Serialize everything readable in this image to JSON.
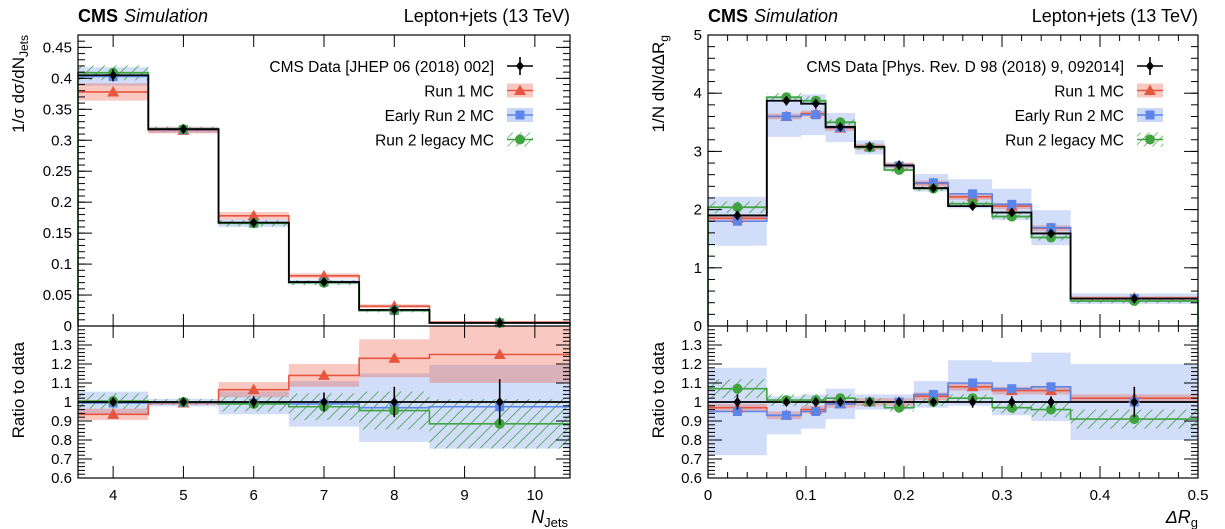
{
  "chart_data": [
    {
      "type": "histogram",
      "panel": "left",
      "experiment": "CMS",
      "label_italic": "Simulation",
      "header_right": "Lepton+jets (13 TeV)",
      "ylabel_main": "1/σ dσ/dN",
      "ylabel_main_sub": "Jets",
      "ylabel_ratio": "Ratio to data",
      "xlabel": "N",
      "xlabel_sub": "Jets",
      "xlim": [
        3.5,
        10.5
      ],
      "ylim_main": [
        0,
        0.47
      ],
      "ylim_ratio": [
        0.6,
        1.4
      ],
      "x_ticks": [
        "4",
        "5",
        "6",
        "7",
        "8",
        "9",
        "10"
      ],
      "y_ticks_main": [
        "0",
        "0.05",
        "0.1",
        "0.15",
        "0.2",
        "0.25",
        "0.3",
        "0.35",
        "0.4",
        "0.45"
      ],
      "y_ticks_ratio": [
        "0.6",
        "0.7",
        "0.8",
        "0.9",
        "1",
        "1.1",
        "1.2",
        "1.3"
      ],
      "bin_edges": [
        3.5,
        4.5,
        5.5,
        6.5,
        7.5,
        8.5,
        10.5
      ],
      "bin_centers": [
        4,
        5,
        6,
        7,
        8,
        9.5
      ],
      "legend": [
        "CMS Data [JHEP 06 (2018) 002]",
        "Run 1 MC",
        "Early Run 2 MC",
        "Run 2 legacy MC"
      ],
      "series": [
        {
          "name": "CMS Data [JHEP 06 (2018) 002]",
          "values": [
            0.405,
            0.318,
            0.167,
            0.071,
            0.026,
            0.005
          ],
          "errors": [
            0.01,
            0.006,
            0.005,
            0.003,
            0.002,
            0.001
          ],
          "color": "#000000"
        },
        {
          "name": "Run 1 MC",
          "values": [
            0.378,
            0.316,
            0.178,
            0.081,
            0.032,
            0.006
          ],
          "band": [
            0.014,
            0.005,
            0.006,
            0.004,
            0.003,
            0.002
          ],
          "ratio": [
            0.935,
            0.995,
            1.065,
            1.14,
            1.23,
            1.25
          ],
          "ratio_band": [
            0.03,
            0.01,
            0.04,
            0.06,
            0.1,
            0.15
          ],
          "color": "#e8553f"
        },
        {
          "name": "Early Run 2 MC",
          "values": [
            0.403,
            0.317,
            0.166,
            0.071,
            0.025,
            0.005
          ],
          "band": [
            0.015,
            0.005,
            0.006,
            0.004,
            0.002,
            0.001
          ],
          "ratio": [
            0.995,
            0.997,
            0.995,
            0.99,
            0.97,
            0.975
          ],
          "ratio_band": [
            0.06,
            0.02,
            0.06,
            0.12,
            0.18,
            0.22
          ],
          "color": "#5b85ea"
        },
        {
          "name": "Run 2 legacy MC",
          "values": [
            0.409,
            0.318,
            0.166,
            0.07,
            0.025,
            0.005
          ],
          "band": [
            0.012,
            0.004,
            0.005,
            0.004,
            0.003,
            0.001
          ],
          "ratio": [
            1.005,
            1.0,
            0.99,
            0.975,
            0.955,
            0.885
          ],
          "ratio_band": [
            0.04,
            0.015,
            0.04,
            0.07,
            0.1,
            0.13
          ],
          "color": "#3fa33f"
        }
      ],
      "data_ratio_errors": [
        0.02,
        0.02,
        0.03,
        0.05,
        0.08,
        0.12
      ]
    },
    {
      "type": "histogram",
      "panel": "right",
      "experiment": "CMS",
      "label_italic": "Simulation",
      "header_right": "Lepton+jets (13 TeV)",
      "ylabel_main": "1/N  dN/dΔR",
      "ylabel_main_sub": "g",
      "ylabel_ratio": "Ratio to data",
      "xlabel": "ΔR",
      "xlabel_sub": "g",
      "xlim": [
        0,
        0.5
      ],
      "ylim_main": [
        0,
        5
      ],
      "ylim_ratio": [
        0.6,
        1.4
      ],
      "x_ticks": [
        "0",
        "0.1",
        "0.2",
        "0.3",
        "0.4",
        "0.5"
      ],
      "y_ticks_main": [
        "0",
        "1",
        "2",
        "3",
        "4",
        "5"
      ],
      "y_ticks_ratio": [
        "0.6",
        "0.7",
        "0.8",
        "0.9",
        "1",
        "1.1",
        "1.2",
        "1.3"
      ],
      "bin_edges": [
        0,
        0.06,
        0.095,
        0.12,
        0.15,
        0.18,
        0.21,
        0.245,
        0.29,
        0.33,
        0.37,
        0.5
      ],
      "bin_centers": [
        0.03,
        0.08,
        0.11,
        0.135,
        0.165,
        0.195,
        0.23,
        0.27,
        0.31,
        0.35,
        0.435
      ],
      "legend": [
        "CMS Data [Phys. Rev. D 98 (2018) 9, 092014]",
        "Run 1 MC",
        "Early Run 2 MC",
        "Run 2 legacy MC"
      ],
      "series": [
        {
          "name": "CMS Data [Phys. Rev. D 98 (2018) 9, 092014]",
          "values": [
            1.9,
            3.87,
            3.82,
            3.42,
            3.08,
            2.76,
            2.37,
            2.06,
            1.95,
            1.59,
            0.47
          ],
          "errors": [
            0.08,
            0.08,
            0.08,
            0.07,
            0.06,
            0.06,
            0.06,
            0.05,
            0.05,
            0.05,
            0.04
          ],
          "color": "#000000"
        },
        {
          "name": "Run 1 MC",
          "values": [
            1.85,
            3.6,
            3.65,
            3.4,
            3.08,
            2.76,
            2.45,
            2.22,
            2.06,
            1.68,
            0.48
          ],
          "band": [
            0.05,
            0.05,
            0.05,
            0.05,
            0.05,
            0.05,
            0.05,
            0.05,
            0.05,
            0.05,
            0.03
          ],
          "ratio": [
            0.97,
            0.93,
            0.96,
            0.99,
            1.0,
            1.0,
            1.03,
            1.08,
            1.06,
            1.06,
            1.02
          ],
          "ratio_band": [
            0.02,
            0.02,
            0.02,
            0.02,
            0.02,
            0.02,
            0.02,
            0.02,
            0.02,
            0.02,
            0.02
          ],
          "color": "#e8553f"
        },
        {
          "name": "Early Run 2 MC",
          "values": [
            1.8,
            3.6,
            3.63,
            3.41,
            3.07,
            2.75,
            2.46,
            2.27,
            2.09,
            1.69,
            0.47
          ],
          "band": [
            0.42,
            0.35,
            0.35,
            0.25,
            0.12,
            0.05,
            0.15,
            0.25,
            0.27,
            0.3,
            0.09
          ],
          "ratio": [
            0.95,
            0.93,
            0.95,
            0.99,
            1.0,
            1.0,
            1.04,
            1.1,
            1.07,
            1.08,
            1.0
          ],
          "ratio_band": [
            0.23,
            0.1,
            0.09,
            0.08,
            0.04,
            0.04,
            0.07,
            0.12,
            0.14,
            0.18,
            0.2
          ],
          "color": "#5b85ea"
        },
        {
          "name": "Run 2 legacy MC",
          "values": [
            2.04,
            3.93,
            3.87,
            3.5,
            3.07,
            2.68,
            2.36,
            2.1,
            1.88,
            1.52,
            0.43
          ],
          "band": [
            0.1,
            0.07,
            0.07,
            0.05,
            0.04,
            0.04,
            0.04,
            0.04,
            0.05,
            0.05,
            0.04
          ],
          "ratio": [
            1.07,
            1.01,
            1.01,
            1.02,
            1.0,
            0.97,
            1.0,
            1.02,
            0.97,
            0.96,
            0.91
          ],
          "ratio_band": [
            0.05,
            0.03,
            0.03,
            0.02,
            0.02,
            0.02,
            0.02,
            0.02,
            0.03,
            0.04,
            0.05
          ],
          "color": "#3fa33f"
        }
      ],
      "data_ratio_errors": [
        0.04,
        0.02,
        0.02,
        0.02,
        0.02,
        0.02,
        0.02,
        0.03,
        0.03,
        0.03,
        0.08
      ]
    }
  ]
}
